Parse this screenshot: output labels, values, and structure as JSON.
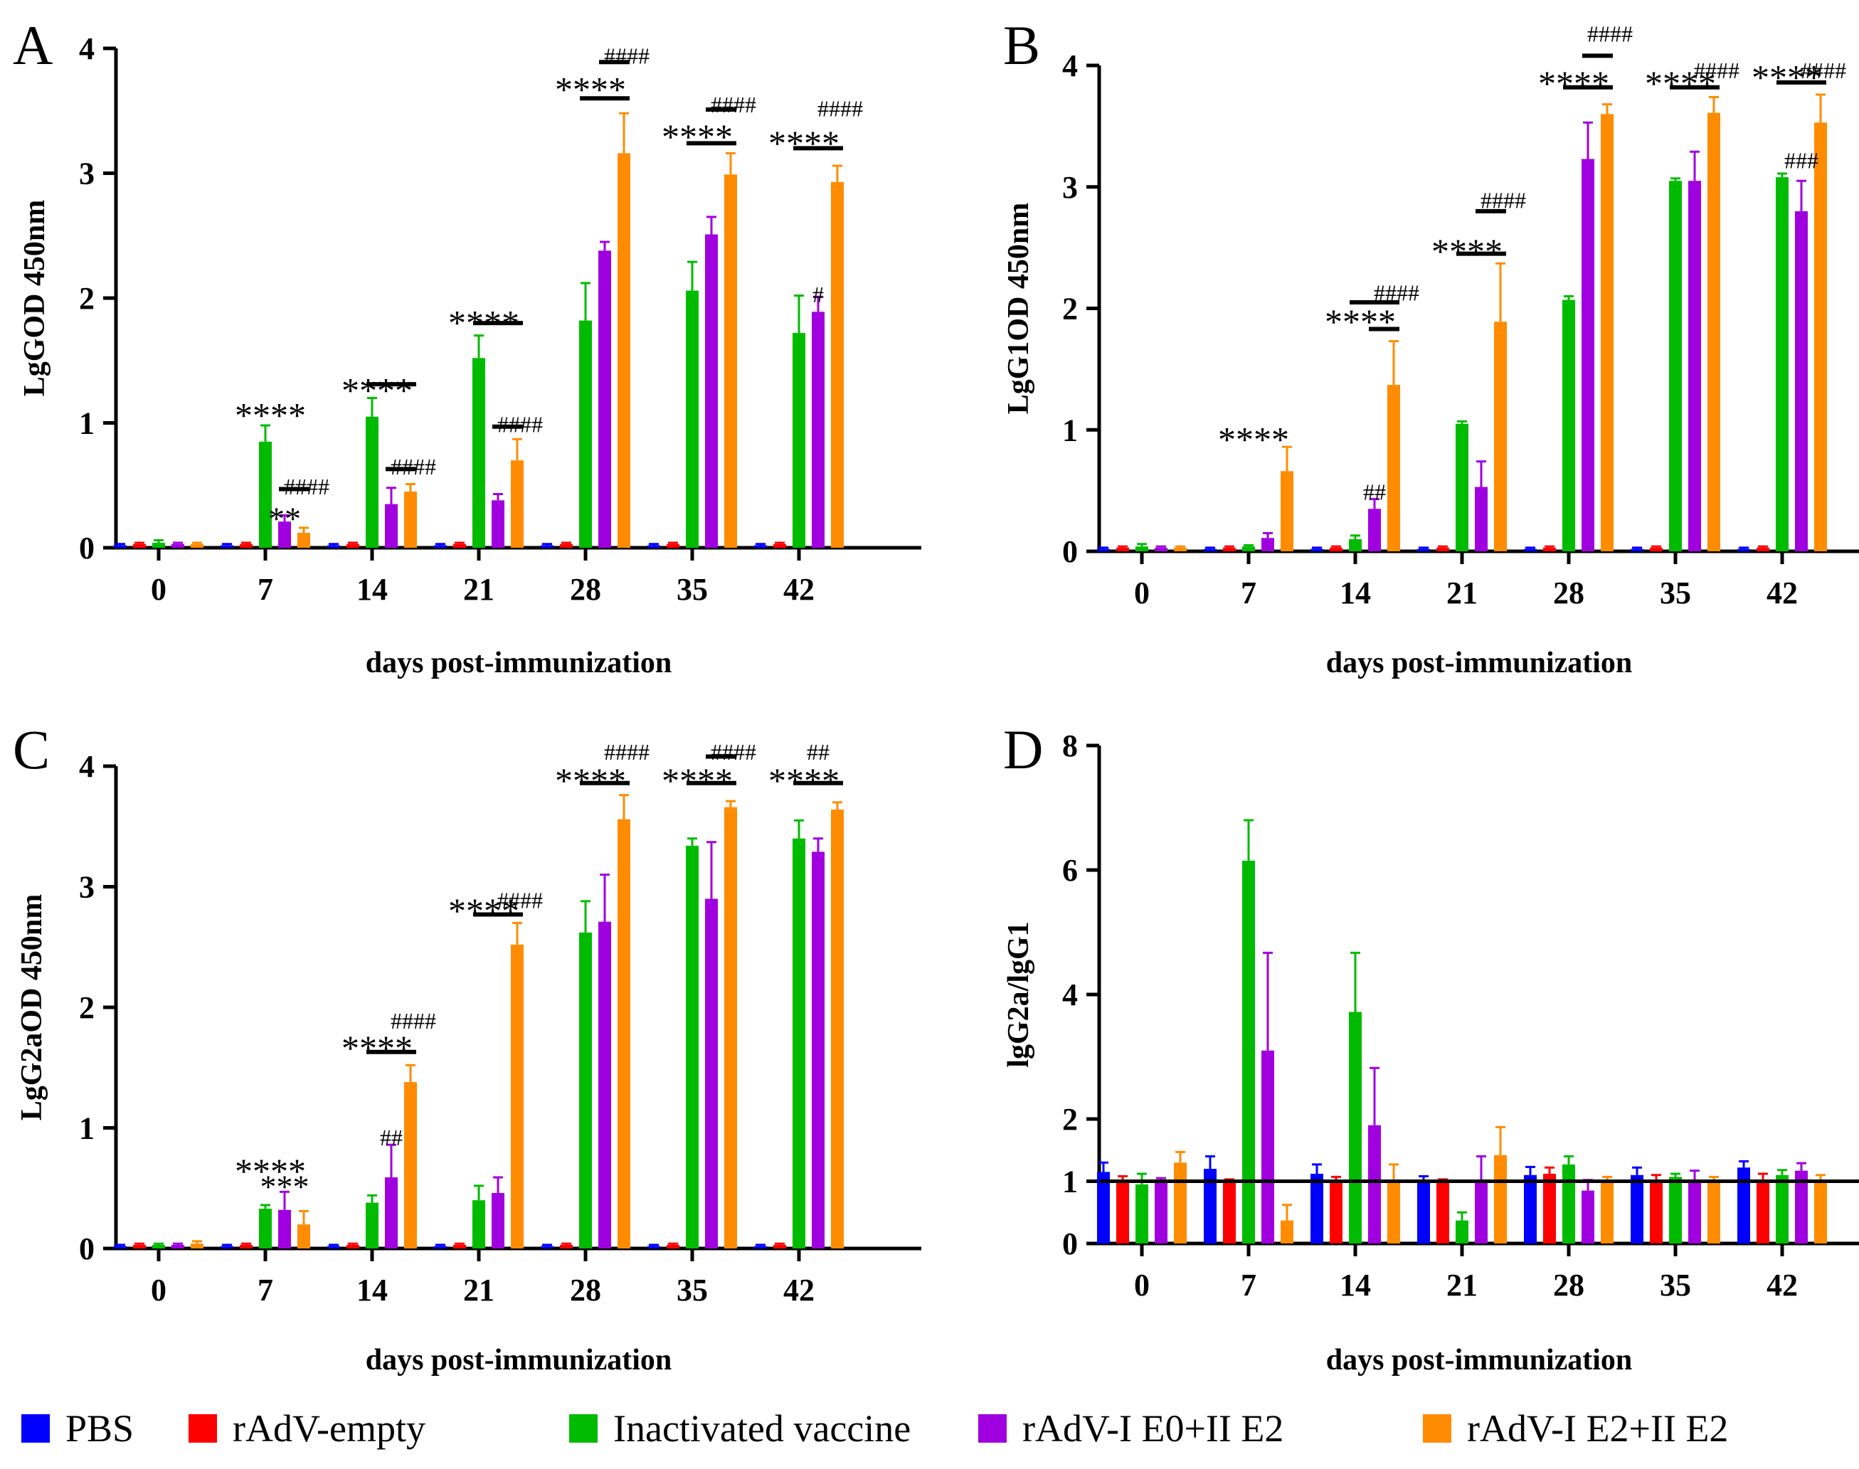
{
  "colors": {
    "PBS": "#0000ff",
    "rAdV-empty": "#ff0000",
    "Inactivated vaccine": "#00bb00",
    "rAdV-I E0+II E2": "#a000e0",
    "rAdV-I E2+II E2": "#ff8c00"
  },
  "legend": [
    {
      "name": "PBS",
      "label": "PBS"
    },
    {
      "name": "rAdV-empty",
      "label": "rAdV-empty"
    },
    {
      "name": "Inactivated vaccine",
      "label": "Inactivated vaccine"
    },
    {
      "name": "rAdV-I E0+II E2",
      "label": "rAdV-I  E0+II  E2"
    },
    {
      "name": "rAdV-I E2+II E2",
      "label": "rAdV-I  E2+II  E2"
    }
  ],
  "chart_data": [
    {
      "panel": "A",
      "type": "bar",
      "ylabel": "LgGOD 450nm",
      "xlabel": "days post-immunization",
      "categories": [
        "0",
        "7",
        "14",
        "21",
        "28",
        "35",
        "42"
      ],
      "ylim": [
        0,
        4
      ],
      "yticks": [
        "0",
        "1",
        "2",
        "3",
        "4"
      ],
      "series": [
        {
          "name": "PBS",
          "values": [
            0.02,
            0.02,
            0.02,
            0.02,
            0.02,
            0.02,
            0.02
          ],
          "errors": [
            0.01,
            0.01,
            0.01,
            0.01,
            0.01,
            0.01,
            0.01
          ]
        },
        {
          "name": "rAdV-empty",
          "values": [
            0.03,
            0.03,
            0.03,
            0.03,
            0.03,
            0.03,
            0.03
          ],
          "errors": [
            0.01,
            0.01,
            0.01,
            0.01,
            0.01,
            0.01,
            0.01
          ]
        },
        {
          "name": "Inactivated vaccine",
          "values": [
            0.04,
            0.85,
            1.05,
            1.52,
            1.82,
            2.06,
            1.72
          ],
          "errors": [
            0.02,
            0.13,
            0.15,
            0.18,
            0.3,
            0.23,
            0.3
          ]
        },
        {
          "name": "rAdV-I E0+II E2",
          "values": [
            0.03,
            0.21,
            0.35,
            0.38,
            2.38,
            2.51,
            1.89
          ],
          "errors": [
            0.01,
            0.05,
            0.13,
            0.05,
            0.07,
            0.14,
            0.12
          ]
        },
        {
          "name": "rAdV-I E2+II E2",
          "values": [
            0.03,
            0.12,
            0.45,
            0.7,
            3.16,
            2.99,
            2.93
          ],
          "errors": [
            0.01,
            0.04,
            0.06,
            0.17,
            0.32,
            0.17,
            0.13
          ]
        }
      ],
      "annotations": [
        {
          "text": "****",
          "x": "7",
          "y": 1.08
        },
        {
          "text": "####",
          "x": "7",
          "y": 0.5
        },
        {
          "text": "**",
          "x": "7",
          "y": 0.25
        },
        {
          "text": "****",
          "x": "14",
          "y": 1.28
        },
        {
          "text": "####",
          "x": "14",
          "y": 0.66
        },
        {
          "text": "****",
          "x": "21",
          "y": 1.82
        },
        {
          "text": "####",
          "x": "21",
          "y": 1.0
        },
        {
          "text": "####",
          "x": "28",
          "y": 3.95
        },
        {
          "text": "****",
          "x": "28",
          "y": 3.69
        },
        {
          "text": "####",
          "x": "35",
          "y": 3.56
        },
        {
          "text": "****",
          "x": "35",
          "y": 3.31
        },
        {
          "text": "####",
          "x": "42",
          "y": 3.53
        },
        {
          "text": "****",
          "x": "42",
          "y": 3.26
        },
        {
          "text": "#",
          "x": "42",
          "y": 2.04
        }
      ],
      "brackets": [
        {
          "x": "7",
          "from": 3,
          "to": 4,
          "y": 0.47
        },
        {
          "x": "14",
          "from": 2,
          "to": 4,
          "y": 1.31
        },
        {
          "x": "14",
          "from": 3,
          "to": 4,
          "y": 0.63
        },
        {
          "x": "21",
          "from": 2,
          "to": 4,
          "y": 1.8
        },
        {
          "x": "21",
          "from": 3,
          "to": 4,
          "y": 0.97
        },
        {
          "x": "28",
          "from": 2,
          "to": 4,
          "y": 3.6
        },
        {
          "x": "28",
          "from": 3,
          "to": 4,
          "y": 3.89
        },
        {
          "x": "35",
          "from": 2,
          "to": 4,
          "y": 3.24
        },
        {
          "x": "35",
          "from": 3,
          "to": 4,
          "y": 3.51
        },
        {
          "x": "42",
          "from": 2,
          "to": 4,
          "y": 3.2
        }
      ]
    },
    {
      "panel": "B",
      "type": "bar",
      "ylabel": "LgG1OD 450nm",
      "xlabel": "days post-immunization",
      "categories": [
        "0",
        "7",
        "14",
        "21",
        "28",
        "35",
        "42"
      ],
      "ylim": [
        0,
        4
      ],
      "yticks": [
        "0",
        "1",
        "2",
        "3",
        "4"
      ],
      "series": [
        {
          "name": "PBS",
          "values": [
            0.02,
            0.02,
            0.02,
            0.02,
            0.02,
            0.02,
            0.02
          ],
          "errors": [
            0.01,
            0.01,
            0.01,
            0.01,
            0.01,
            0.01,
            0.01
          ]
        },
        {
          "name": "rAdV-empty",
          "values": [
            0.03,
            0.03,
            0.03,
            0.03,
            0.03,
            0.03,
            0.03
          ],
          "errors": [
            0.01,
            0.01,
            0.01,
            0.01,
            0.01,
            0.01,
            0.01
          ]
        },
        {
          "name": "Inactivated vaccine",
          "values": [
            0.04,
            0.04,
            0.1,
            1.05,
            2.07,
            3.05,
            3.08
          ],
          "errors": [
            0.02,
            0.01,
            0.03,
            0.02,
            0.03,
            0.02,
            0.03
          ]
        },
        {
          "name": "rAdV-I E0+II E2",
          "values": [
            0.03,
            0.11,
            0.35,
            0.53,
            3.23,
            3.05,
            2.8
          ],
          "errors": [
            0.01,
            0.04,
            0.08,
            0.21,
            0.3,
            0.24,
            0.25
          ]
        },
        {
          "name": "rAdV-I E2+II E2",
          "values": [
            0.03,
            0.66,
            1.37,
            1.89,
            3.6,
            3.61,
            3.53
          ],
          "errors": [
            0.01,
            0.2,
            0.36,
            0.48,
            0.08,
            0.13,
            0.23
          ]
        }
      ],
      "annotations": [
        {
          "text": "****",
          "x": "7",
          "y": 0.94
        },
        {
          "text": "####",
          "x": "14",
          "y": 2.14
        },
        {
          "text": "****",
          "x": "14",
          "y": 1.91
        },
        {
          "text": "##",
          "x": "14",
          "y": 0.5
        },
        {
          "text": "####",
          "x": "21",
          "y": 2.9
        },
        {
          "text": "****",
          "x": "21",
          "y": 2.49
        },
        {
          "text": "####",
          "x": "28",
          "y": 4.27
        },
        {
          "text": "****",
          "x": "28",
          "y": 3.87
        },
        {
          "text": "####",
          "x": "35",
          "y": 3.97
        },
        {
          "text": "****",
          "x": "35",
          "y": 3.87
        },
        {
          "text": "####",
          "x": "42",
          "y": 3.97
        },
        {
          "text": "****",
          "x": "42",
          "y": 3.92
        },
        {
          "text": "###",
          "x": "42",
          "y": 3.23
        }
      ],
      "brackets": [
        {
          "x": "14",
          "from": 3,
          "to": 4,
          "y": 1.83
        },
        {
          "x": "14",
          "from": 2,
          "to": 4,
          "y": 2.05
        },
        {
          "x": "21",
          "from": 3,
          "to": 4,
          "y": 2.8
        },
        {
          "x": "21",
          "from": 2,
          "to": 4,
          "y": 2.45
        },
        {
          "x": "28",
          "from": 2,
          "to": 4,
          "y": 3.82
        },
        {
          "x": "28",
          "from": 3,
          "to": 4,
          "y": 4.08
        },
        {
          "x": "35",
          "from": 2,
          "to": 4,
          "y": 3.82
        },
        {
          "x": "42",
          "from": 2,
          "to": 4,
          "y": 3.86
        }
      ]
    },
    {
      "panel": "C",
      "type": "bar",
      "ylabel": "LgG2aOD 450nm",
      "xlabel": "days post-immunization",
      "categories": [
        "0",
        "7",
        "14",
        "21",
        "28",
        "35",
        "42"
      ],
      "ylim": [
        0,
        4
      ],
      "yticks": [
        "0",
        "1",
        "2",
        "3",
        "4"
      ],
      "series": [
        {
          "name": "PBS",
          "values": [
            0.02,
            0.02,
            0.02,
            0.02,
            0.02,
            0.02,
            0.02
          ],
          "errors": [
            0.01,
            0.01,
            0.01,
            0.01,
            0.01,
            0.01,
            0.01
          ]
        },
        {
          "name": "rAdV-empty",
          "values": [
            0.03,
            0.03,
            0.03,
            0.03,
            0.03,
            0.03,
            0.03
          ],
          "errors": [
            0.01,
            0.01,
            0.01,
            0.01,
            0.01,
            0.01,
            0.01
          ]
        },
        {
          "name": "Inactivated vaccine",
          "values": [
            0.03,
            0.33,
            0.38,
            0.4,
            2.62,
            3.34,
            3.4
          ],
          "errors": [
            0.01,
            0.03,
            0.06,
            0.12,
            0.26,
            0.06,
            0.15
          ]
        },
        {
          "name": "rAdV-I E0+II E2",
          "values": [
            0.03,
            0.32,
            0.59,
            0.46,
            2.71,
            2.9,
            3.29
          ],
          "errors": [
            0.01,
            0.15,
            0.27,
            0.13,
            0.39,
            0.47,
            0.11
          ]
        },
        {
          "name": "rAdV-I E2+II E2",
          "values": [
            0.04,
            0.2,
            1.38,
            2.52,
            3.56,
            3.66,
            3.64
          ],
          "errors": [
            0.02,
            0.11,
            0.14,
            0.18,
            0.2,
            0.05,
            0.06
          ]
        }
      ],
      "annotations": [
        {
          "text": "****",
          "x": "7",
          "y": 0.66
        },
        {
          "text": "***",
          "x": "7",
          "y": 0.53
        },
        {
          "text": "####",
          "x": "14",
          "y": 1.9
        },
        {
          "text": "****",
          "x": "14",
          "y": 1.68
        },
        {
          "text": "##",
          "x": "14",
          "y": 0.93
        },
        {
          "text": "####",
          "x": "21",
          "y": 2.9
        },
        {
          "text": "****",
          "x": "21",
          "y": 2.82
        },
        {
          "text": "####",
          "x": "28",
          "y": 4.13
        },
        {
          "text": "****",
          "x": "28",
          "y": 3.9
        },
        {
          "text": "####",
          "x": "35",
          "y": 4.13
        },
        {
          "text": "****",
          "x": "35",
          "y": 3.9
        },
        {
          "text": "##",
          "x": "42",
          "y": 4.13
        },
        {
          "text": "****",
          "x": "42",
          "y": 3.9
        }
      ],
      "brackets": [
        {
          "x": "14",
          "from": 2,
          "to": 4,
          "y": 1.63
        },
        {
          "x": "21",
          "from": 2,
          "to": 4,
          "y": 2.77
        },
        {
          "x": "28",
          "from": 2,
          "to": 4,
          "y": 3.86
        },
        {
          "x": "35",
          "from": 2,
          "to": 4,
          "y": 3.86
        },
        {
          "x": "35",
          "from": 3,
          "to": 4,
          "y": 4.08
        },
        {
          "x": "42",
          "from": 2,
          "to": 4,
          "y": 3.86
        }
      ]
    },
    {
      "panel": "D",
      "type": "bar",
      "ylabel": "lgG2a/lgG1",
      "xlabel": "days post-immunization",
      "categories": [
        "0",
        "7",
        "14",
        "21",
        "28",
        "35",
        "42"
      ],
      "ylim": [
        0,
        8
      ],
      "yticks": [
        "0",
        "1",
        "2",
        "4",
        "6",
        "8"
      ],
      "reference_line": 1,
      "series": [
        {
          "name": "PBS",
          "values": [
            1.15,
            1.2,
            1.12,
            1.0,
            1.1,
            1.1,
            1.22
          ],
          "errors": [
            0.15,
            0.2,
            0.15,
            0.08,
            0.13,
            0.12,
            0.1
          ]
        },
        {
          "name": "rAdV-empty",
          "values": [
            0.98,
            0.98,
            1.02,
            0.98,
            1.12,
            1.02,
            1.0
          ],
          "errors": [
            0.1,
            0.05,
            0.05,
            0.05,
            0.1,
            0.08,
            0.12
          ]
        },
        {
          "name": "Inactivated vaccine",
          "values": [
            0.95,
            6.15,
            3.72,
            0.37,
            1.27,
            1.07,
            1.1
          ],
          "errors": [
            0.17,
            0.65,
            0.95,
            0.13,
            0.13,
            0.05,
            0.08
          ]
        },
        {
          "name": "rAdV-I E0+II E2",
          "values": [
            1.0,
            3.1,
            1.9,
            1.0,
            0.85,
            1.02,
            1.17
          ],
          "errors": [
            0.05,
            1.57,
            0.92,
            0.4,
            0.17,
            0.15,
            0.12
          ]
        },
        {
          "name": "rAdV-I E2+II E2",
          "values": [
            1.3,
            0.37,
            1.02,
            1.42,
            1.02,
            1.02,
            1.02
          ],
          "errors": [
            0.17,
            0.25,
            0.25,
            0.45,
            0.05,
            0.05,
            0.08
          ]
        }
      ],
      "annotations": [],
      "brackets": []
    }
  ]
}
